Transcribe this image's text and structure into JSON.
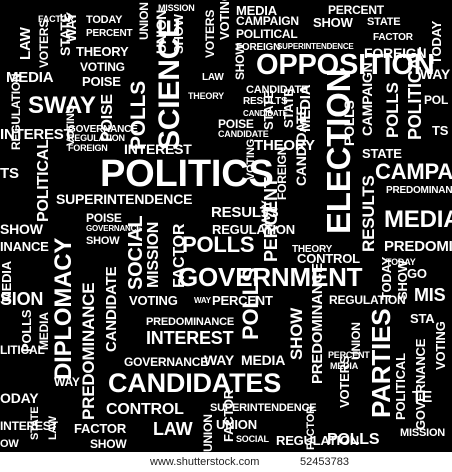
{
  "colors": {
    "background": "#000000",
    "text": "#ffffff",
    "footer_bg": "#ffffff",
    "footer_text": "#222222"
  },
  "words": {
    "politics": "POLITICS",
    "government": "GOVERNMENT",
    "opposition": "OPPOSITION",
    "science": "SCIENCE",
    "election": "ELECTION",
    "diplomacy": "DIPLOMACY",
    "candidates": "CANDIDATES",
    "parties": "PARTIES",
    "sway": "SWAY",
    "polls": "POLLS",
    "social": "SOCIAL",
    "mission": "MISSION",
    "results": "RESULTS",
    "regulation": "REGULATION",
    "superintendence": "SUPERINTENDENCE",
    "interest": "INTEREST",
    "voting": "VOTING",
    "percent": "PERCENT",
    "way": "WAY",
    "media": "MEDIA",
    "predominance": "PREDOMINANCE",
    "governance": "GOVERNANCE",
    "control": "CONTROL",
    "law": "LAW",
    "union": "UNION",
    "factor": "FACTOR",
    "show": "SHOW",
    "campaign": "CAMPAIGN",
    "theory": "THEORY",
    "political": "POLITICAL",
    "foreign": "FOREIGN",
    "state": "STATE",
    "poise": "POISE",
    "candidate": "CANDIDATE",
    "voters": "VOTERS",
    "today": "TODAY",
    "pol": "POL",
    "ical": "ICAL",
    "ts": "TS",
    "ence": "ENCE",
    "interest_cut": "INTEREST",
    "today_left": "ODAY",
    "show_left": "SHOW",
    "campa_cut": "CAMPA",
    "med_cut": "MED",
    "predomi_cut": "PREDOMI",
    "mis_cut": "MIS",
    "go_cut": "GO",
    "sion_cut": "SION",
    "te_cut": "TE",
    "litical_cut": "LITICAL",
    "ocial_cut": "OCIAL",
    "inance_cut": "INANCE",
    "ow_cut": "OW",
    "ssion_cut": "SSION",
    "sta_cut": "STA",
    "state_cut": "STATE",
    "polls_cut": "POLLS",
    "ia_cut": "IA"
  },
  "footer": {
    "site": "www.shutterstock.com",
    "number": "52453783"
  }
}
